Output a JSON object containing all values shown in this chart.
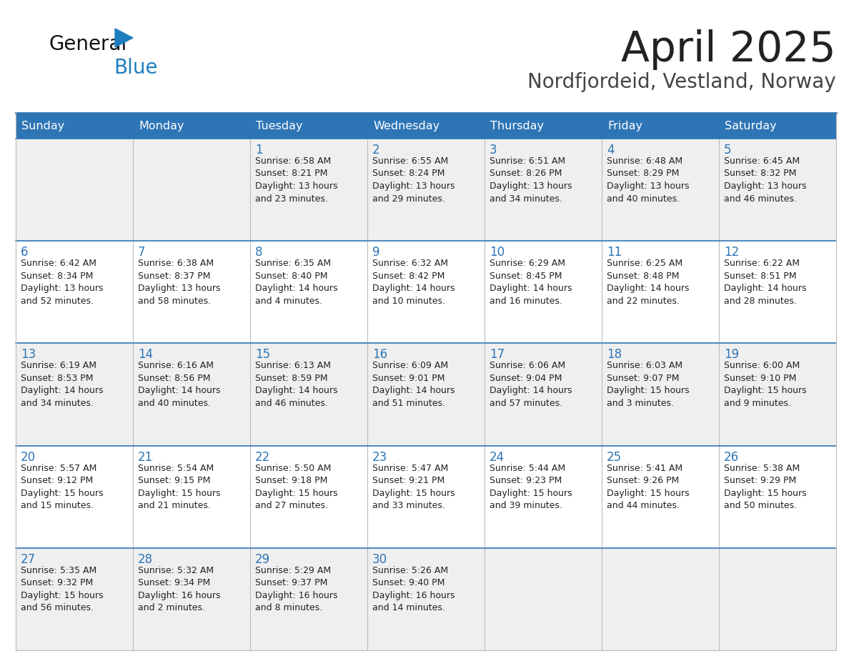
{
  "title": "April 2025",
  "subtitle": "Nordfjordeid, Vestland, Norway",
  "days_of_week": [
    "Sunday",
    "Monday",
    "Tuesday",
    "Wednesday",
    "Thursday",
    "Friday",
    "Saturday"
  ],
  "header_bg": "#2E75B6",
  "header_text": "#FFFFFF",
  "row_bg_odd": "#EFEFEF",
  "row_bg_even": "#FFFFFF",
  "cell_border": "#BBBBBB",
  "day_number_color": "#2E75B6",
  "text_color": "#222222",
  "title_color": "#222222",
  "subtitle_color": "#444444",
  "logo_general_color": "#111111",
  "logo_blue_color": "#1E7FC0",
  "background": "#FFFFFF",
  "weeks": [
    [
      {
        "day": null,
        "text": ""
      },
      {
        "day": null,
        "text": ""
      },
      {
        "day": 1,
        "text": "Sunrise: 6:58 AM\nSunset: 8:21 PM\nDaylight: 13 hours\nand 23 minutes."
      },
      {
        "day": 2,
        "text": "Sunrise: 6:55 AM\nSunset: 8:24 PM\nDaylight: 13 hours\nand 29 minutes."
      },
      {
        "day": 3,
        "text": "Sunrise: 6:51 AM\nSunset: 8:26 PM\nDaylight: 13 hours\nand 34 minutes."
      },
      {
        "day": 4,
        "text": "Sunrise: 6:48 AM\nSunset: 8:29 PM\nDaylight: 13 hours\nand 40 minutes."
      },
      {
        "day": 5,
        "text": "Sunrise: 6:45 AM\nSunset: 8:32 PM\nDaylight: 13 hours\nand 46 minutes."
      }
    ],
    [
      {
        "day": 6,
        "text": "Sunrise: 6:42 AM\nSunset: 8:34 PM\nDaylight: 13 hours\nand 52 minutes."
      },
      {
        "day": 7,
        "text": "Sunrise: 6:38 AM\nSunset: 8:37 PM\nDaylight: 13 hours\nand 58 minutes."
      },
      {
        "day": 8,
        "text": "Sunrise: 6:35 AM\nSunset: 8:40 PM\nDaylight: 14 hours\nand 4 minutes."
      },
      {
        "day": 9,
        "text": "Sunrise: 6:32 AM\nSunset: 8:42 PM\nDaylight: 14 hours\nand 10 minutes."
      },
      {
        "day": 10,
        "text": "Sunrise: 6:29 AM\nSunset: 8:45 PM\nDaylight: 14 hours\nand 16 minutes."
      },
      {
        "day": 11,
        "text": "Sunrise: 6:25 AM\nSunset: 8:48 PM\nDaylight: 14 hours\nand 22 minutes."
      },
      {
        "day": 12,
        "text": "Sunrise: 6:22 AM\nSunset: 8:51 PM\nDaylight: 14 hours\nand 28 minutes."
      }
    ],
    [
      {
        "day": 13,
        "text": "Sunrise: 6:19 AM\nSunset: 8:53 PM\nDaylight: 14 hours\nand 34 minutes."
      },
      {
        "day": 14,
        "text": "Sunrise: 6:16 AM\nSunset: 8:56 PM\nDaylight: 14 hours\nand 40 minutes."
      },
      {
        "day": 15,
        "text": "Sunrise: 6:13 AM\nSunset: 8:59 PM\nDaylight: 14 hours\nand 46 minutes."
      },
      {
        "day": 16,
        "text": "Sunrise: 6:09 AM\nSunset: 9:01 PM\nDaylight: 14 hours\nand 51 minutes."
      },
      {
        "day": 17,
        "text": "Sunrise: 6:06 AM\nSunset: 9:04 PM\nDaylight: 14 hours\nand 57 minutes."
      },
      {
        "day": 18,
        "text": "Sunrise: 6:03 AM\nSunset: 9:07 PM\nDaylight: 15 hours\nand 3 minutes."
      },
      {
        "day": 19,
        "text": "Sunrise: 6:00 AM\nSunset: 9:10 PM\nDaylight: 15 hours\nand 9 minutes."
      }
    ],
    [
      {
        "day": 20,
        "text": "Sunrise: 5:57 AM\nSunset: 9:12 PM\nDaylight: 15 hours\nand 15 minutes."
      },
      {
        "day": 21,
        "text": "Sunrise: 5:54 AM\nSunset: 9:15 PM\nDaylight: 15 hours\nand 21 minutes."
      },
      {
        "day": 22,
        "text": "Sunrise: 5:50 AM\nSunset: 9:18 PM\nDaylight: 15 hours\nand 27 minutes."
      },
      {
        "day": 23,
        "text": "Sunrise: 5:47 AM\nSunset: 9:21 PM\nDaylight: 15 hours\nand 33 minutes."
      },
      {
        "day": 24,
        "text": "Sunrise: 5:44 AM\nSunset: 9:23 PM\nDaylight: 15 hours\nand 39 minutes."
      },
      {
        "day": 25,
        "text": "Sunrise: 5:41 AM\nSunset: 9:26 PM\nDaylight: 15 hours\nand 44 minutes."
      },
      {
        "day": 26,
        "text": "Sunrise: 5:38 AM\nSunset: 9:29 PM\nDaylight: 15 hours\nand 50 minutes."
      }
    ],
    [
      {
        "day": 27,
        "text": "Sunrise: 5:35 AM\nSunset: 9:32 PM\nDaylight: 15 hours\nand 56 minutes."
      },
      {
        "day": 28,
        "text": "Sunrise: 5:32 AM\nSunset: 9:34 PM\nDaylight: 16 hours\nand 2 minutes."
      },
      {
        "day": 29,
        "text": "Sunrise: 5:29 AM\nSunset: 9:37 PM\nDaylight: 16 hours\nand 8 minutes."
      },
      {
        "day": 30,
        "text": "Sunrise: 5:26 AM\nSunset: 9:40 PM\nDaylight: 16 hours\nand 14 minutes."
      },
      {
        "day": null,
        "text": ""
      },
      {
        "day": null,
        "text": ""
      },
      {
        "day": null,
        "text": ""
      }
    ]
  ]
}
